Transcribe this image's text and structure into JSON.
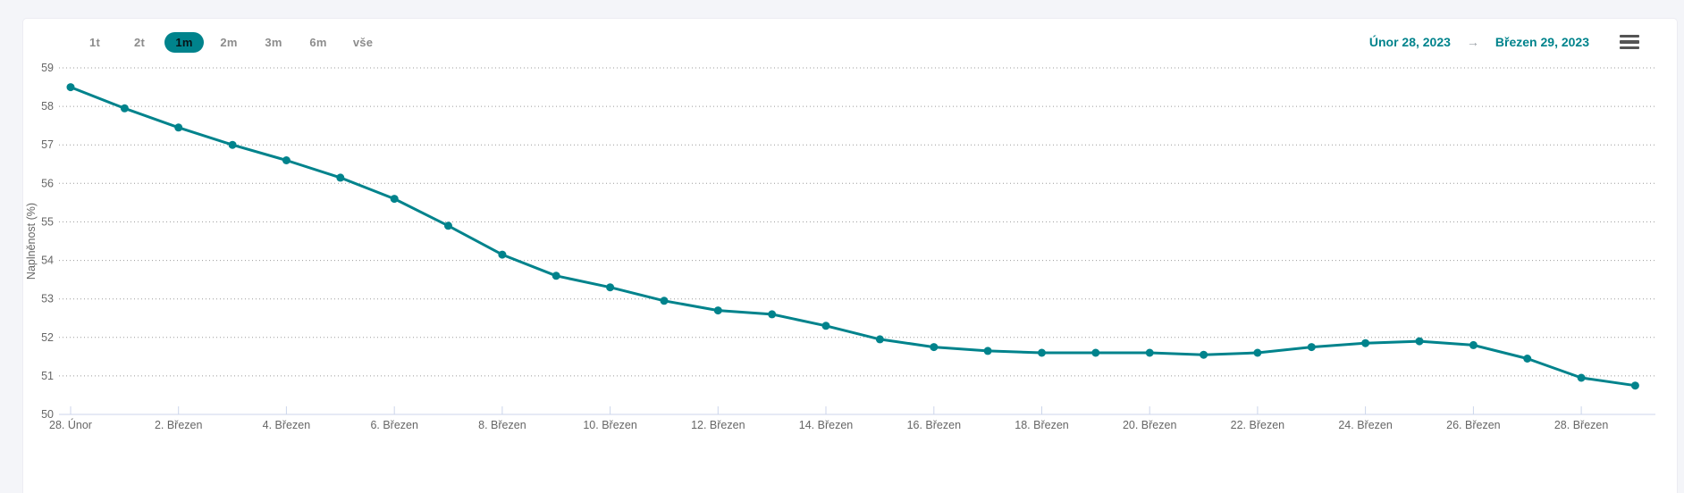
{
  "colors": {
    "accent": "#00838c",
    "series_line": "#00838c",
    "page_background": "#f4f5f9",
    "card_background": "#ffffff",
    "gridline": "#9b9b9b",
    "axis_line": "#ccd6eb",
    "axis_label": "#666666",
    "button_label": "#8c8c8c",
    "selected_button_text": "#071418",
    "menu_icon": "#545454"
  },
  "toolbar": {
    "range_buttons": [
      {
        "label": "1t",
        "selected": false
      },
      {
        "label": "2t",
        "selected": false
      },
      {
        "label": "1m",
        "selected": true
      },
      {
        "label": "2m",
        "selected": false
      },
      {
        "label": "3m",
        "selected": false
      },
      {
        "label": "6m",
        "selected": false
      },
      {
        "label": "vše",
        "selected": false
      }
    ],
    "date_from": "Únor 28, 2023",
    "arrow": "→",
    "date_to": "Březen 29, 2023",
    "menu_icon": "hamburger-menu-icon"
  },
  "chart_data": {
    "type": "line",
    "title": "",
    "xlabel": "",
    "ylabel": "Naplněnost (%)",
    "ylim": [
      50,
      59
    ],
    "y_ticks": [
      50,
      51,
      52,
      53,
      54,
      55,
      56,
      57,
      58,
      59
    ],
    "grid": "horizontal-dotted",
    "legend": "none",
    "markers": true,
    "x": [
      "2023-02-28",
      "2023-03-01",
      "2023-03-02",
      "2023-03-03",
      "2023-03-04",
      "2023-03-05",
      "2023-03-06",
      "2023-03-07",
      "2023-03-08",
      "2023-03-09",
      "2023-03-10",
      "2023-03-11",
      "2023-03-12",
      "2023-03-13",
      "2023-03-14",
      "2023-03-15",
      "2023-03-16",
      "2023-03-17",
      "2023-03-18",
      "2023-03-19",
      "2023-03-20",
      "2023-03-21",
      "2023-03-22",
      "2023-03-23",
      "2023-03-24",
      "2023-03-25",
      "2023-03-26",
      "2023-03-27",
      "2023-03-28",
      "2023-03-29"
    ],
    "x_tick_labels": [
      "28. Únor",
      "2. Březen",
      "4. Březen",
      "6. Březen",
      "8. Březen",
      "10. Březen",
      "12. Březen",
      "14. Březen",
      "16. Březen",
      "18. Březen",
      "20. Březen",
      "22. Březen",
      "24. Březen",
      "26. Březen",
      "28. Březen"
    ],
    "x_tick_every_n_days": 2,
    "series": [
      {
        "name": "Naplněnost",
        "color": "#00838c",
        "values": [
          58.5,
          57.95,
          57.45,
          57.0,
          56.6,
          56.15,
          55.6,
          54.9,
          54.15,
          53.6,
          53.3,
          52.95,
          52.7,
          52.6,
          52.3,
          51.95,
          51.75,
          51.65,
          51.6,
          51.6,
          51.6,
          51.55,
          51.6,
          51.75,
          51.85,
          51.9,
          51.8,
          51.45,
          50.95,
          50.75
        ]
      }
    ]
  }
}
